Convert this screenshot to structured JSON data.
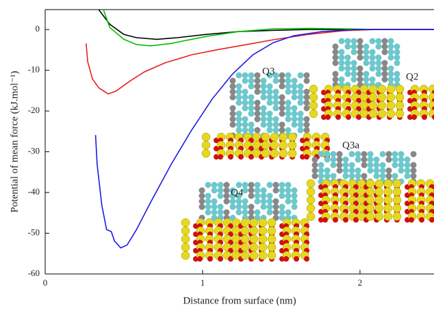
{
  "chart_data": {
    "type": "line",
    "x_label": "Distance from surface (nm)",
    "y_label": "Potential of mean force (kJ.mol⁻¹)",
    "xlim": [
      0,
      2.47
    ],
    "ylim": [
      -60,
      4.9
    ],
    "xticks": [
      0,
      1,
      2
    ],
    "yticks": [
      -60,
      -50,
      -40,
      -30,
      -20,
      -10,
      0
    ],
    "series": [
      {
        "color": "#000000",
        "x": [
          0.34,
          0.41,
          0.5,
          0.58,
          0.71,
          0.84,
          1.02,
          1.23,
          1.45,
          1.67,
          1.89,
          2.1,
          2.47
        ],
        "values": [
          4.9,
          1.3,
          -1.2,
          -2.0,
          -2.4,
          -2.0,
          -1.2,
          -0.5,
          -0.2,
          0,
          0,
          0,
          0
        ]
      },
      {
        "color": "#00c000",
        "x": [
          0.37,
          0.41,
          0.5,
          0.58,
          0.67,
          0.8,
          1.02,
          1.23,
          1.45,
          1.67,
          1.89,
          2.1,
          2.47
        ],
        "values": [
          4.9,
          0.5,
          -2.4,
          -3.7,
          -4.0,
          -3.4,
          -1.7,
          -0.5,
          0.2,
          0.3,
          0.2,
          0,
          0
        ]
      },
      {
        "color": "#e81e1e",
        "x": [
          0.26,
          0.27,
          0.3,
          0.34,
          0.4,
          0.45,
          0.54,
          0.63,
          0.76,
          0.93,
          1.1,
          1.28,
          1.45,
          1.67,
          1.89,
          2.1,
          2.47
        ],
        "values": [
          -3.4,
          -7.9,
          -12.1,
          -14.3,
          -15.8,
          -15.1,
          -12.6,
          -10.4,
          -8.2,
          -6.2,
          -4.9,
          -3.7,
          -2.5,
          -1.2,
          -0.3,
          0,
          0
        ]
      },
      {
        "color": "#1a1ae6",
        "x": [
          0.32,
          0.33,
          0.36,
          0.39,
          0.42,
          0.44,
          0.48,
          0.52,
          0.58,
          0.67,
          0.8,
          0.93,
          1.06,
          1.19,
          1.32,
          1.45,
          1.58,
          1.76,
          1.97,
          2.47
        ],
        "values": [
          -25.9,
          -33.1,
          -43.2,
          -49.1,
          -49.6,
          -51.9,
          -53.6,
          -52.9,
          -49.1,
          -42.4,
          -33.1,
          -24.7,
          -17.1,
          -10.9,
          -6.2,
          -3.2,
          -1.5,
          -0.5,
          0,
          0
        ]
      }
    ],
    "annotations": [
      {
        "text": "Q3",
        "color": "#00b000"
      },
      {
        "text": "Q2",
        "color": "#000000"
      },
      {
        "text": "Q3a",
        "color": "#e81e1e"
      },
      {
        "text": "Q4",
        "color": "#1a1ae6"
      }
    ]
  }
}
